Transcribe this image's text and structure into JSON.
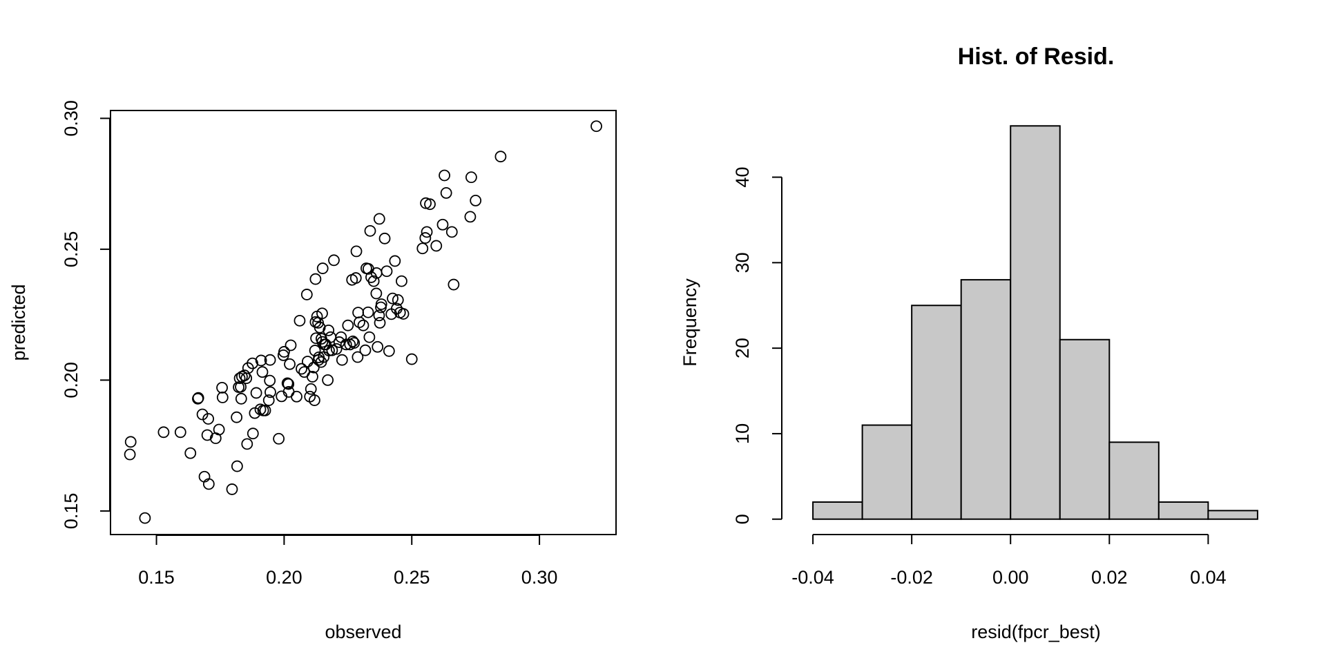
{
  "chart_data": [
    {
      "type": "scatter",
      "title": "",
      "xlabel": "observed",
      "ylabel": "predicted",
      "xlim": [
        0.132,
        0.33
      ],
      "ylim": [
        0.141,
        0.303
      ],
      "x_ticks": [
        0.15,
        0.2,
        0.25,
        0.3
      ],
      "x_tick_labels": [
        "0.15",
        "0.20",
        "0.25",
        "0.30"
      ],
      "y_ticks": [
        0.15,
        0.2,
        0.25,
        0.3
      ],
      "y_tick_labels": [
        "0.15",
        "0.20",
        "0.25",
        "0.30"
      ],
      "grid": false,
      "marker": "open-circle",
      "points": [
        [
          0.1396,
          0.1716
        ],
        [
          0.1399,
          0.1764
        ],
        [
          0.1455,
          0.1473
        ],
        [
          0.1528,
          0.1801
        ],
        [
          0.1594,
          0.1801
        ],
        [
          0.1633,
          0.1721
        ],
        [
          0.1662,
          0.1929
        ],
        [
          0.1664,
          0.1932
        ],
        [
          0.168,
          0.1869
        ],
        [
          0.1688,
          0.1631
        ],
        [
          0.1699,
          0.179
        ],
        [
          0.1703,
          0.1852
        ],
        [
          0.1705,
          0.1603
        ],
        [
          0.1732,
          0.1778
        ],
        [
          0.1745,
          0.1811
        ],
        [
          0.1757,
          0.1971
        ],
        [
          0.1759,
          0.1934
        ],
        [
          0.1796,
          0.1583
        ],
        [
          0.1814,
          0.1858
        ],
        [
          0.1816,
          0.1671
        ],
        [
          0.1822,
          0.1973
        ],
        [
          0.1826,
          0.2007
        ],
        [
          0.183,
          0.1974
        ],
        [
          0.1832,
          0.1929
        ],
        [
          0.1835,
          0.2013
        ],
        [
          0.1845,
          0.2018
        ],
        [
          0.1852,
          0.2007
        ],
        [
          0.1855,
          0.1756
        ],
        [
          0.1859,
          0.2046
        ],
        [
          0.1876,
          0.2064
        ],
        [
          0.1878,
          0.1796
        ],
        [
          0.1885,
          0.1874
        ],
        [
          0.1891,
          0.1951
        ],
        [
          0.1907,
          0.1888
        ],
        [
          0.191,
          0.2075
        ],
        [
          0.1915,
          0.2031
        ],
        [
          0.1918,
          0.1884
        ],
        [
          0.1926,
          0.1884
        ],
        [
          0.194,
          0.1923
        ],
        [
          0.1944,
          0.1998
        ],
        [
          0.1945,
          0.2077
        ],
        [
          0.1946,
          0.1954
        ],
        [
          0.1979,
          0.1776
        ],
        [
          0.199,
          0.1938
        ],
        [
          0.1997,
          0.2095
        ],
        [
          0.2,
          0.2108
        ],
        [
          0.2013,
          0.1988
        ],
        [
          0.2017,
          0.1985
        ],
        [
          0.2018,
          0.1955
        ],
        [
          0.2022,
          0.2061
        ],
        [
          0.2026,
          0.2133
        ],
        [
          0.2049,
          0.1937
        ],
        [
          0.2061,
          0.2227
        ],
        [
          0.2068,
          0.2043
        ],
        [
          0.2079,
          0.2031
        ],
        [
          0.2089,
          0.2327
        ],
        [
          0.2092,
          0.2071
        ],
        [
          0.2101,
          0.1937
        ],
        [
          0.2105,
          0.1966
        ],
        [
          0.2111,
          0.2013
        ],
        [
          0.2116,
          0.2048
        ],
        [
          0.2119,
          0.1923
        ],
        [
          0.2121,
          0.2113
        ],
        [
          0.2123,
          0.2222
        ],
        [
          0.2123,
          0.2386
        ],
        [
          0.2125,
          0.216
        ],
        [
          0.2129,
          0.2243
        ],
        [
          0.2133,
          0.2219
        ],
        [
          0.2135,
          0.2077
        ],
        [
          0.2136,
          0.2087
        ],
        [
          0.214,
          0.2201
        ],
        [
          0.2145,
          0.2069
        ],
        [
          0.2146,
          0.2158
        ],
        [
          0.2149,
          0.2255
        ],
        [
          0.215,
          0.2146
        ],
        [
          0.2151,
          0.2427
        ],
        [
          0.2155,
          0.2088
        ],
        [
          0.2158,
          0.2136
        ],
        [
          0.2163,
          0.2136
        ],
        [
          0.2171,
          0.2
        ],
        [
          0.2174,
          0.219
        ],
        [
          0.2176,
          0.2113
        ],
        [
          0.2182,
          0.2164
        ],
        [
          0.2188,
          0.2114
        ],
        [
          0.2195,
          0.2458
        ],
        [
          0.2205,
          0.2119
        ],
        [
          0.2216,
          0.2145
        ],
        [
          0.2223,
          0.2164
        ],
        [
          0.2227,
          0.2077
        ],
        [
          0.2243,
          0.2136
        ],
        [
          0.225,
          0.2209
        ],
        [
          0.2258,
          0.2136
        ],
        [
          0.2266,
          0.2383
        ],
        [
          0.2269,
          0.2148
        ],
        [
          0.2274,
          0.2142
        ],
        [
          0.2281,
          0.239
        ],
        [
          0.2283,
          0.2492
        ],
        [
          0.2288,
          0.2088
        ],
        [
          0.229,
          0.2258
        ],
        [
          0.2295,
          0.2221
        ],
        [
          0.231,
          0.2209
        ],
        [
          0.2318,
          0.2114
        ],
        [
          0.2322,
          0.2427
        ],
        [
          0.2329,
          0.2259
        ],
        [
          0.233,
          0.2425
        ],
        [
          0.2334,
          0.2164
        ],
        [
          0.2337,
          0.257
        ],
        [
          0.2341,
          0.2393
        ],
        [
          0.2351,
          0.2378
        ],
        [
          0.2361,
          0.2331
        ],
        [
          0.2362,
          0.2409
        ],
        [
          0.2366,
          0.2127
        ],
        [
          0.2372,
          0.2247
        ],
        [
          0.2373,
          0.2616
        ],
        [
          0.2375,
          0.2219
        ],
        [
          0.2379,
          0.2278
        ],
        [
          0.2381,
          0.229
        ],
        [
          0.2394,
          0.2541
        ],
        [
          0.2402,
          0.2416
        ],
        [
          0.2411,
          0.2111
        ],
        [
          0.242,
          0.2252
        ],
        [
          0.2425,
          0.2312
        ],
        [
          0.2434,
          0.2455
        ],
        [
          0.2441,
          0.2273
        ],
        [
          0.2446,
          0.2306
        ],
        [
          0.2454,
          0.2258
        ],
        [
          0.246,
          0.2378
        ],
        [
          0.2467,
          0.2253
        ],
        [
          0.25,
          0.208
        ],
        [
          0.2542,
          0.2503
        ],
        [
          0.2553,
          0.2543
        ],
        [
          0.2555,
          0.2676
        ],
        [
          0.2559,
          0.2566
        ],
        [
          0.2571,
          0.2672
        ],
        [
          0.2596,
          0.2513
        ],
        [
          0.2621,
          0.2594
        ],
        [
          0.2628,
          0.2782
        ],
        [
          0.2635,
          0.2715
        ],
        [
          0.2657,
          0.2566
        ],
        [
          0.2664,
          0.2365
        ],
        [
          0.2729,
          0.2624
        ],
        [
          0.2733,
          0.2775
        ],
        [
          0.275,
          0.2686
        ],
        [
          0.2848,
          0.2854
        ],
        [
          0.3223,
          0.297
        ]
      ]
    },
    {
      "type": "bar",
      "subtype": "histogram",
      "title": "Hist. of Resid.",
      "xlabel": "resid(fpcr_best)",
      "ylabel": "Frequency",
      "bin_edges": [
        -0.04,
        -0.03,
        -0.02,
        -0.01,
        0.0,
        0.01,
        0.02,
        0.03,
        0.04,
        0.05
      ],
      "values": [
        2,
        11,
        25,
        28,
        46,
        21,
        9,
        2,
        1
      ],
      "xlim": [
        -0.0463,
        0.0563
      ],
      "ylim": [
        -1.8,
        47.8
      ],
      "x_ticks": [
        -0.04,
        -0.02,
        0.0,
        0.02,
        0.04
      ],
      "x_tick_labels": [
        "-0.04",
        "-0.02",
        "0.00",
        "0.02",
        "0.04"
      ],
      "y_ticks": [
        0,
        10,
        20,
        30,
        40
      ],
      "y_tick_labels": [
        "0",
        "10",
        "20",
        "30",
        "40"
      ],
      "bar_color": "#c8c8c8",
      "edge_color": "#000000",
      "grid": false
    }
  ]
}
